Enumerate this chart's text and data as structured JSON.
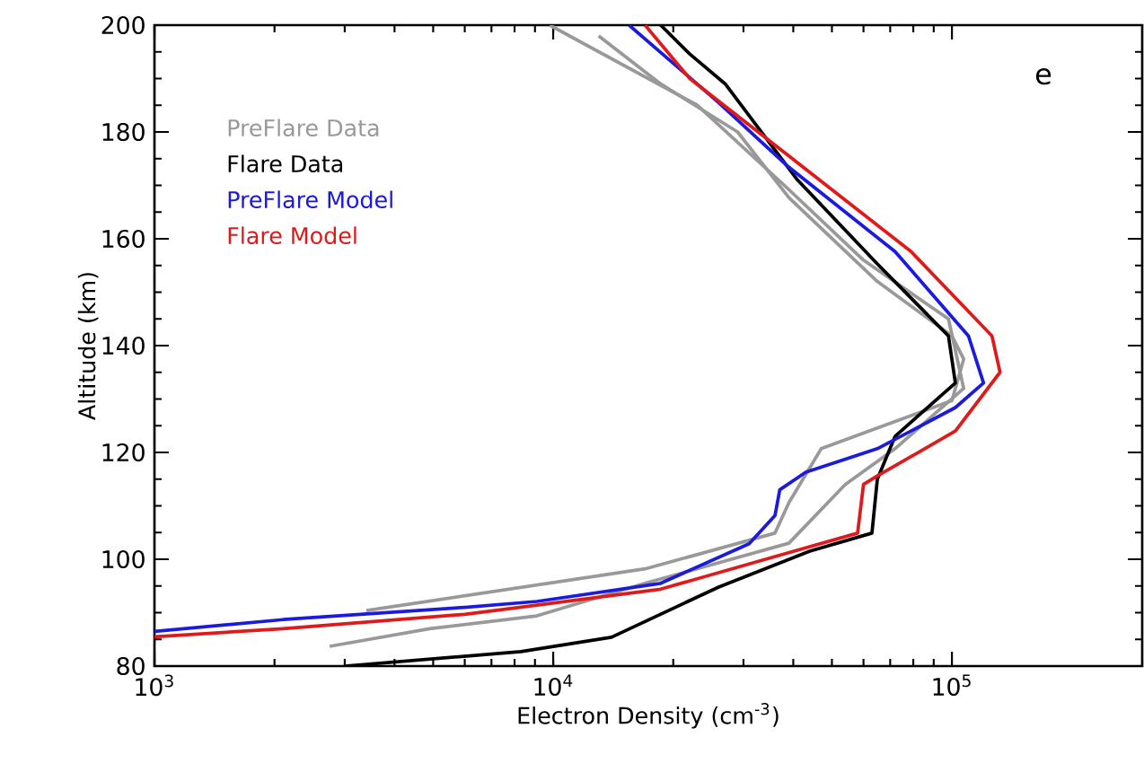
{
  "chart_data": {
    "type": "line",
    "xlabel": "Electron Density (cm$^{-3}$)",
    "ylabel": "Altitude (km)",
    "log": "x",
    "xlim": [
      1000,
      300000
    ],
    "ylim": [
      80,
      200
    ],
    "xticks": [
      {
        "value": 1000,
        "label": "10$^{3}$"
      },
      {
        "value": 10000,
        "label": "10$^{4}$"
      },
      {
        "value": 100000,
        "label": "10$^{5}$"
      }
    ],
    "yticks": [
      80,
      100,
      120,
      140,
      160,
      180,
      200
    ],
    "legend": "top left",
    "grid": false,
    "annotations": [
      {
        "text": "e"
      }
    ],
    "series": [
      {
        "name": "PreFlare Data",
        "color": "#999999",
        "x": [
          3400,
          17000,
          36000,
          39000,
          47000,
          100000,
          107000,
          100000,
          65000,
          39000,
          29000,
          18600,
          13000
        ],
        "values": [
          90.4,
          98.2,
          104.9,
          110.6,
          120.7,
          129.7,
          137.5,
          141.8,
          152,
          167.7,
          180,
          189,
          198
        ]
      },
      {
        "color": "#999999",
        "x": [
          2750,
          4900,
          9100,
          17000,
          39000,
          54000,
          72000,
          107000,
          98000,
          60000,
          38000,
          23000,
          9800
        ],
        "values": [
          83.7,
          87,
          89.4,
          95.5,
          103,
          114,
          120.7,
          132,
          145,
          156,
          170,
          185,
          200
        ]
      },
      {
        "name": "Flare Data",
        "color": "#000000",
        "x": [
          3000,
          8300,
          14000,
          26000,
          44000,
          63000,
          65000,
          72000,
          102000,
          98000,
          65000,
          41000,
          27000,
          22000,
          18600
        ],
        "values": [
          80,
          82.7,
          85.4,
          94.8,
          101.5,
          104.9,
          115,
          123,
          133,
          141.8,
          155.3,
          171,
          189,
          194.6,
          200
        ]
      },
      {
        "name": "PreFlare Model",
        "color": "#1a1ae0",
        "x": [
          1000,
          2100,
          6000,
          9100,
          18600,
          31000,
          36000,
          37000,
          43000,
          65000,
          102000,
          120000,
          110000,
          72000,
          39000,
          26000,
          15500
        ],
        "values": [
          86.5,
          88.7,
          91,
          92.1,
          95.5,
          102.9,
          108.2,
          113,
          116.3,
          120.7,
          128.4,
          133,
          141.8,
          157.6,
          173.4,
          185.5,
          200
        ]
      },
      {
        "name": "Flare Model",
        "color": "#e01a1a",
        "x": [
          1000,
          2100,
          6000,
          9100,
          18600,
          36000,
          58000,
          60000,
          65000,
          102000,
          132000,
          126000,
          79000,
          39000,
          22000,
          17000
        ],
        "values": [
          85.5,
          87,
          89.7,
          91.4,
          94.4,
          100.5,
          104.9,
          114,
          115.6,
          124,
          135,
          141.8,
          157.6,
          175.5,
          190,
          200
        ]
      }
    ]
  }
}
